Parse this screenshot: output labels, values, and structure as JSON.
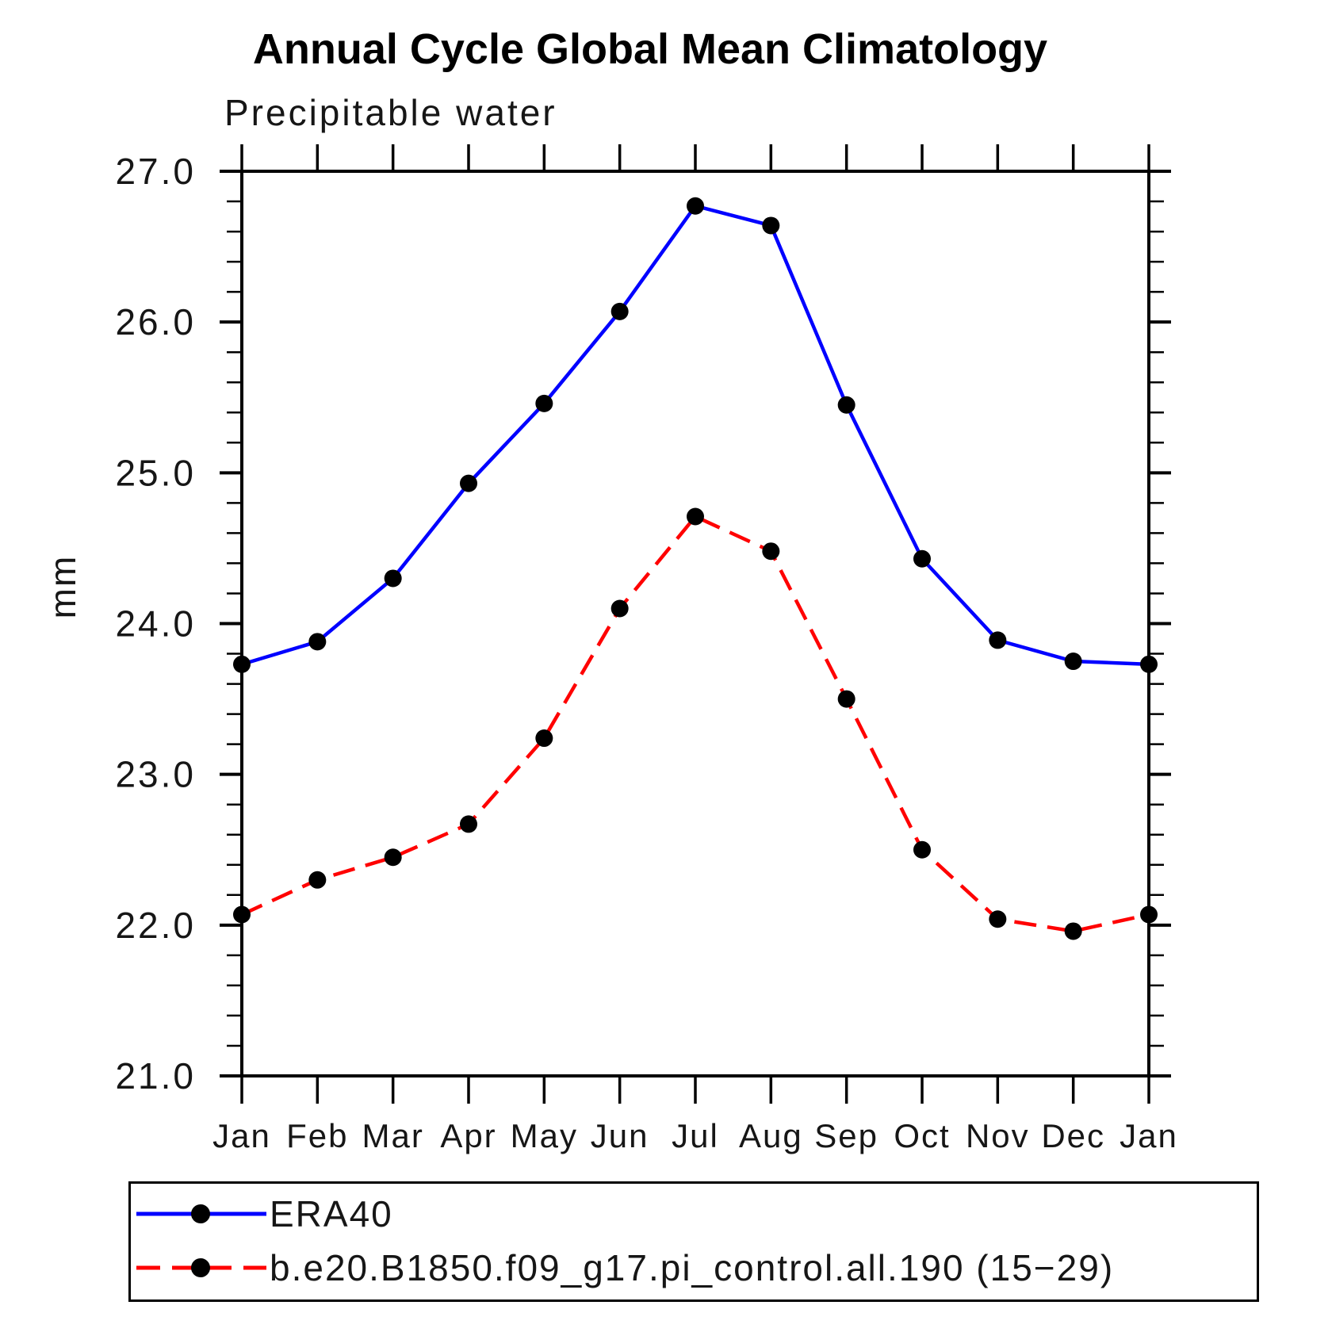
{
  "chart_data": {
    "type": "line",
    "title": "Annual Cycle Global Mean Climatology",
    "subtitle_left": "Precipitable water",
    "ylabel": "mm",
    "xlabel": "",
    "x_tick_labels": [
      "Jan",
      "Feb",
      "Mar",
      "Apr",
      "May",
      "Jun",
      "Jul",
      "Aug",
      "Sep",
      "Oct",
      "Nov",
      "Dec",
      "Jan"
    ],
    "y_tick_labels": [
      "27.0",
      "26.0",
      "25.0",
      "24.0",
      "23.0",
      "22.0",
      "21.0"
    ],
    "ylim": [
      21.0,
      27.0
    ],
    "y_major_step": 1.0,
    "y_minor_step": 0.2,
    "grid": "off",
    "legend_position": "bottom-left",
    "series": [
      {
        "name": "ERA40",
        "color": "#0000ff",
        "style": "solid",
        "marker": "circle",
        "marker_color": "#000000",
        "values": [
          23.73,
          23.88,
          24.3,
          24.93,
          25.46,
          26.07,
          26.77,
          26.64,
          25.45,
          24.43,
          23.89,
          23.75,
          23.73
        ]
      },
      {
        "name": "b.e20.B1850.f09_g17.pi_control.all.190 (15−29)",
        "color": "#ff0000",
        "style": "dashed",
        "marker": "circle",
        "marker_color": "#000000",
        "values": [
          22.07,
          22.3,
          22.45,
          22.67,
          23.24,
          24.1,
          24.71,
          24.48,
          23.5,
          22.5,
          22.04,
          21.96,
          22.07
        ]
      }
    ]
  }
}
